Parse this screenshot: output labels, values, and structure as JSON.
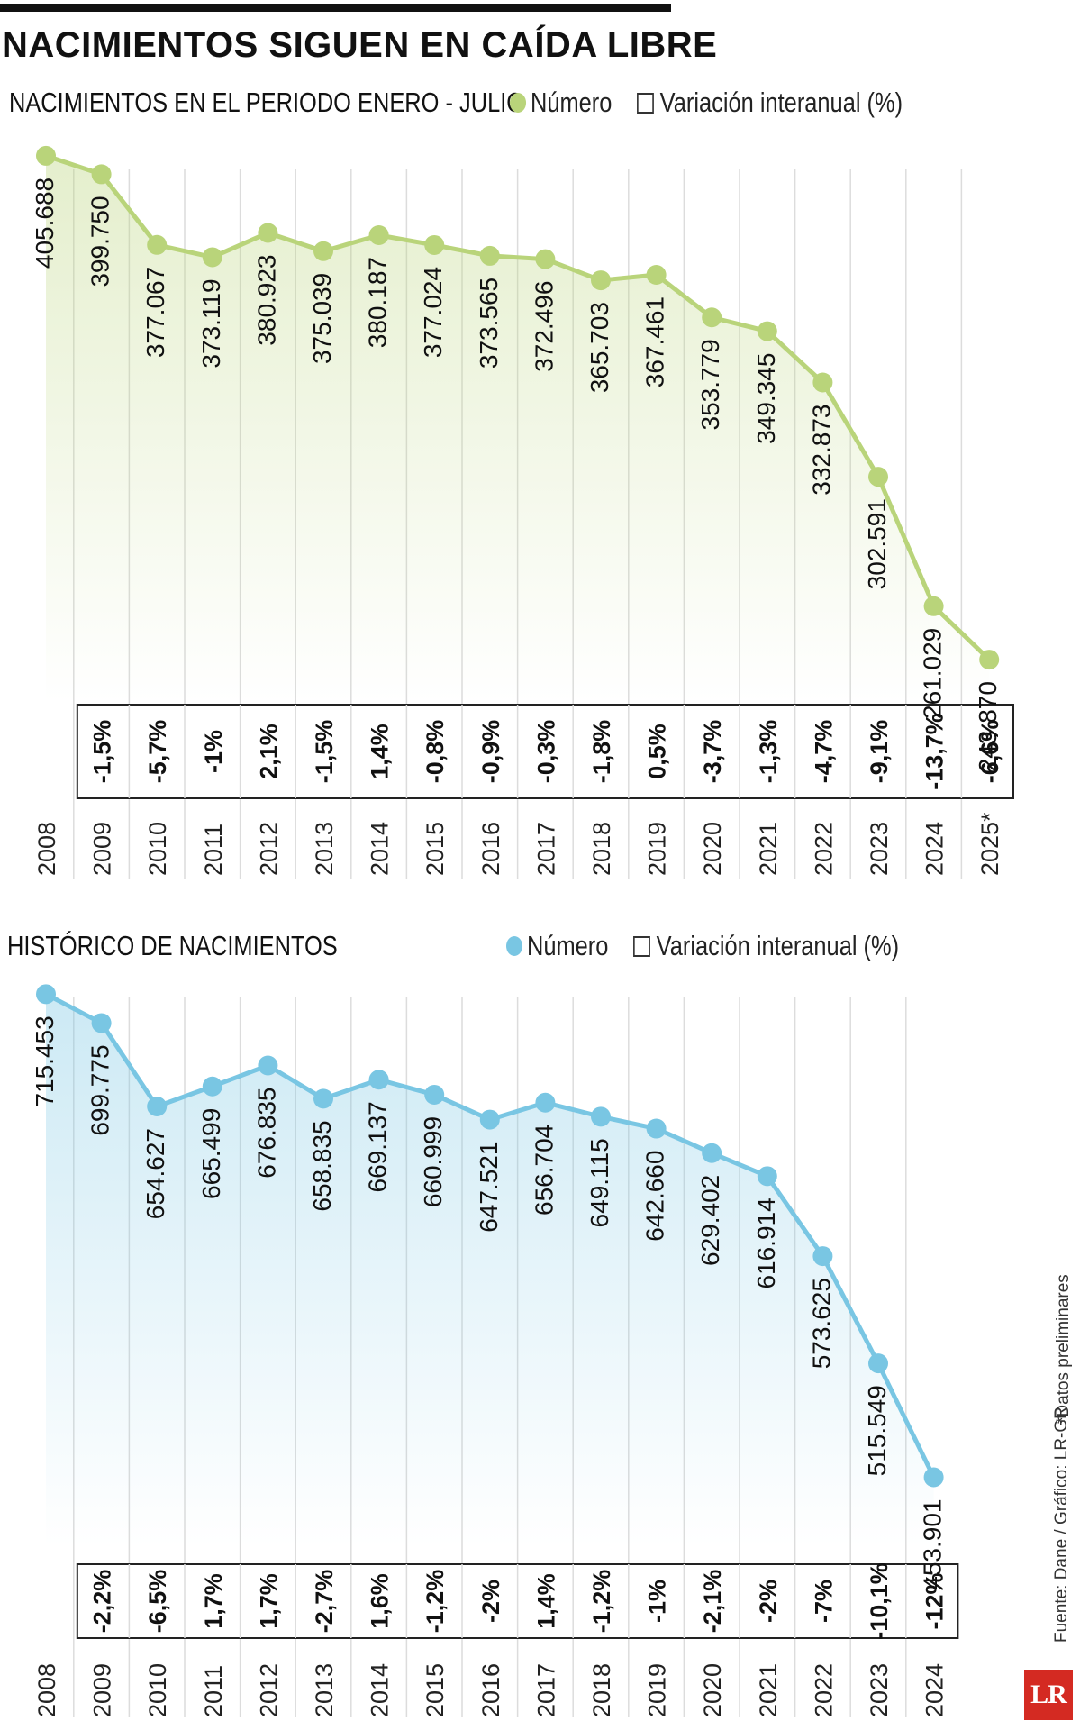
{
  "title": "NACIMIENTOS SIGUEN EN CAÍDA LIBRE",
  "colors": {
    "green": "#b9d47a",
    "blue": "#79c6e3",
    "ink": "#111111",
    "logo": "#d42a22"
  },
  "chart_data": [
    {
      "type": "line",
      "title": "NACIMIENTOS EN EL PERIODO ENERO - JULIO",
      "legend": {
        "number_label": "Número",
        "variation_label": "Variación interanual (%)",
        "placement": "top"
      },
      "x": [
        "2008",
        "2009",
        "2010",
        "2011",
        "2012",
        "2013",
        "2014",
        "2015",
        "2016",
        "2017",
        "2018",
        "2019",
        "2020",
        "2021",
        "2022",
        "2023",
        "2024",
        "2025*"
      ],
      "values": [
        405688,
        399750,
        377067,
        373119,
        380923,
        375039,
        380187,
        377024,
        373565,
        372496,
        365703,
        367461,
        353779,
        349345,
        332873,
        302591,
        261029,
        243870
      ],
      "value_labels": [
        "405.688",
        "399.750",
        "377.067",
        "373.119",
        "380.923",
        "375.039",
        "380.187",
        "377.024",
        "373.565",
        "372.496",
        "365.703",
        "367.461",
        "353.779",
        "349.345",
        "332.873",
        "302.591",
        "261.029",
        "243.870"
      ],
      "variation_labels": [
        "",
        "-1,5%",
        "-5,7%",
        "-1%",
        "2,1%",
        "-1,5%",
        "1,4%",
        "-0,8%",
        "-0,9%",
        "-0,3%",
        "-1,8%",
        "0,5%",
        "-3,7%",
        "-1,3%",
        "-4,7%",
        "-9,1%",
        "-13,7%",
        "-6,6%"
      ],
      "ylim": [
        230000,
        410000
      ]
    },
    {
      "type": "line",
      "title": "HISTÓRICO DE NACIMIENTOS",
      "legend": {
        "number_label": "Número",
        "variation_label": "Variación interanual (%)",
        "placement": "top"
      },
      "x": [
        "2008",
        "2009",
        "2010",
        "2011",
        "2012",
        "2013",
        "2014",
        "2015",
        "2016",
        "2017",
        "2018",
        "2019",
        "2020",
        "2021",
        "2022",
        "2023",
        "2024"
      ],
      "values": [
        715453,
        699775,
        654627,
        665499,
        676835,
        658835,
        669137,
        660999,
        647521,
        656704,
        649115,
        642660,
        629402,
        616914,
        573625,
        515549,
        453901
      ],
      "value_labels": [
        "715.453",
        "699.775",
        "654.627",
        "665.499",
        "676.835",
        "658.835",
        "669.137",
        "660.999",
        "647.521",
        "656.704",
        "649.115",
        "642.660",
        "629.402",
        "616.914",
        "573.625",
        "515.549",
        "453.901"
      ],
      "variation_labels": [
        "",
        "-2,2%",
        "-6,5%",
        "1,7%",
        "1,7%",
        "-2,7%",
        "1,6%",
        "-1,2%",
        "-2%",
        "1,4%",
        "-1,2%",
        "-1%",
        "-2,1%",
        "-2%",
        "-7%",
        "-10,1%",
        "-12%"
      ],
      "ylim": [
        440000,
        720000
      ]
    }
  ],
  "footer": {
    "source": "Fuente: Dane / Gráfico: LR-GR",
    "note": "*Datos preliminares",
    "logo": "LR"
  }
}
